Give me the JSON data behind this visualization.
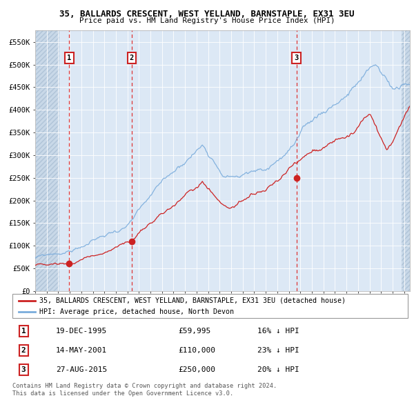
{
  "title": "35, BALLARDS CRESCENT, WEST YELLAND, BARNSTAPLE, EX31 3EU",
  "subtitle": "Price paid vs. HM Land Registry's House Price Index (HPI)",
  "xlim": [
    1993.0,
    2025.5
  ],
  "ylim": [
    0,
    575000
  ],
  "yticks": [
    0,
    50000,
    100000,
    150000,
    200000,
    250000,
    300000,
    350000,
    400000,
    450000,
    500000,
    550000
  ],
  "ytick_labels": [
    "£0",
    "£50K",
    "£100K",
    "£150K",
    "£200K",
    "£250K",
    "£300K",
    "£350K",
    "£400K",
    "£450K",
    "£500K",
    "£550K"
  ],
  "xticks": [
    1993,
    1994,
    1995,
    1996,
    1997,
    1998,
    1999,
    2000,
    2001,
    2002,
    2003,
    2004,
    2005,
    2006,
    2007,
    2008,
    2009,
    2010,
    2011,
    2012,
    2013,
    2014,
    2015,
    2016,
    2017,
    2018,
    2019,
    2020,
    2021,
    2022,
    2023,
    2024,
    2025
  ],
  "sale_dates": [
    1995.96,
    2001.37,
    2015.66
  ],
  "sale_prices": [
    59995,
    110000,
    250000
  ],
  "sale_labels": [
    "1",
    "2",
    "3"
  ],
  "hpi_color": "#7aacdc",
  "price_color": "#cc2222",
  "background_color": "#dce8f5",
  "grid_color": "#ffffff",
  "legend_line1": "35, BALLARDS CRESCENT, WEST YELLAND, BARNSTAPLE, EX31 3EU (detached house)",
  "legend_line2": "HPI: Average price, detached house, North Devon",
  "table_rows": [
    {
      "num": "1",
      "date": "19-DEC-1995",
      "price": "£59,995",
      "hpi": "16% ↓ HPI"
    },
    {
      "num": "2",
      "date": "14-MAY-2001",
      "price": "£110,000",
      "hpi": "23% ↓ HPI"
    },
    {
      "num": "3",
      "date": "27-AUG-2015",
      "price": "£250,000",
      "hpi": "20% ↓ HPI"
    }
  ],
  "footnote1": "Contains HM Land Registry data © Crown copyright and database right 2024.",
  "footnote2": "This data is licensed under the Open Government Licence v3.0."
}
